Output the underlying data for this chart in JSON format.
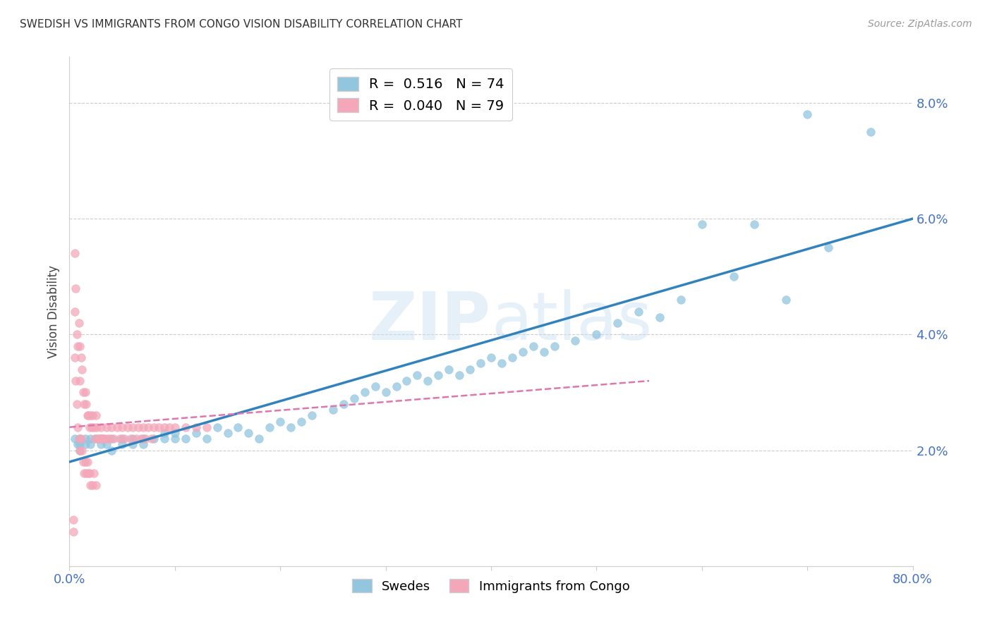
{
  "title": "SWEDISH VS IMMIGRANTS FROM CONGO VISION DISABILITY CORRELATION CHART",
  "source": "Source: ZipAtlas.com",
  "ylabel": "Vision Disability",
  "ytick_labels": [
    "2.0%",
    "4.0%",
    "6.0%",
    "8.0%"
  ],
  "ytick_values": [
    0.02,
    0.04,
    0.06,
    0.08
  ],
  "xlim": [
    0.0,
    0.8
  ],
  "ylim": [
    0.0,
    0.088
  ],
  "legend_entry1": "R =  0.516   N = 74",
  "legend_entry2": "R =  0.040   N = 79",
  "legend_label1": "Swedes",
  "legend_label2": "Immigrants from Congo",
  "blue_color": "#92c5de",
  "pink_color": "#f4a7b9",
  "blue_line_color": "#3182bd",
  "pink_line_color": "#de77ae",
  "title_fontsize": 11,
  "swedes_x": [
    0.005,
    0.008,
    0.01,
    0.01,
    0.01,
    0.015,
    0.015,
    0.02,
    0.02,
    0.025,
    0.03,
    0.03,
    0.035,
    0.04,
    0.04,
    0.05,
    0.05,
    0.06,
    0.06,
    0.07,
    0.07,
    0.08,
    0.09,
    0.09,
    0.1,
    0.1,
    0.11,
    0.12,
    0.13,
    0.14,
    0.15,
    0.16,
    0.17,
    0.18,
    0.19,
    0.2,
    0.21,
    0.22,
    0.23,
    0.25,
    0.26,
    0.27,
    0.28,
    0.29,
    0.3,
    0.31,
    0.32,
    0.33,
    0.34,
    0.35,
    0.36,
    0.37,
    0.38,
    0.39,
    0.4,
    0.41,
    0.42,
    0.43,
    0.44,
    0.45,
    0.46,
    0.48,
    0.5,
    0.52,
    0.54,
    0.56,
    0.58,
    0.6,
    0.63,
    0.65,
    0.68,
    0.7,
    0.72,
    0.76
  ],
  "swedes_y": [
    0.022,
    0.021,
    0.022,
    0.02,
    0.021,
    0.022,
    0.021,
    0.022,
    0.021,
    0.022,
    0.021,
    0.022,
    0.021,
    0.022,
    0.02,
    0.022,
    0.021,
    0.022,
    0.021,
    0.022,
    0.021,
    0.022,
    0.022,
    0.023,
    0.022,
    0.023,
    0.022,
    0.023,
    0.022,
    0.024,
    0.023,
    0.024,
    0.023,
    0.022,
    0.024,
    0.025,
    0.024,
    0.025,
    0.026,
    0.027,
    0.028,
    0.029,
    0.03,
    0.031,
    0.03,
    0.031,
    0.032,
    0.033,
    0.032,
    0.033,
    0.034,
    0.033,
    0.034,
    0.035,
    0.036,
    0.035,
    0.036,
    0.037,
    0.038,
    0.037,
    0.038,
    0.039,
    0.04,
    0.042,
    0.044,
    0.043,
    0.046,
    0.059,
    0.05,
    0.059,
    0.046,
    0.078,
    0.055,
    0.075
  ],
  "congo_x": [
    0.004,
    0.004,
    0.005,
    0.005,
    0.005,
    0.006,
    0.006,
    0.007,
    0.007,
    0.008,
    0.008,
    0.009,
    0.009,
    0.01,
    0.01,
    0.01,
    0.011,
    0.011,
    0.012,
    0.012,
    0.013,
    0.013,
    0.014,
    0.014,
    0.015,
    0.015,
    0.016,
    0.016,
    0.017,
    0.017,
    0.018,
    0.018,
    0.019,
    0.019,
    0.02,
    0.02,
    0.021,
    0.022,
    0.022,
    0.023,
    0.023,
    0.024,
    0.025,
    0.025,
    0.026,
    0.027,
    0.028,
    0.029,
    0.03,
    0.031,
    0.032,
    0.033,
    0.035,
    0.036,
    0.038,
    0.04,
    0.042,
    0.045,
    0.048,
    0.05,
    0.052,
    0.055,
    0.058,
    0.06,
    0.063,
    0.065,
    0.068,
    0.07,
    0.072,
    0.075,
    0.078,
    0.08,
    0.085,
    0.09,
    0.095,
    0.1,
    0.11,
    0.12,
    0.13
  ],
  "congo_y": [
    0.008,
    0.006,
    0.054,
    0.044,
    0.036,
    0.048,
    0.032,
    0.04,
    0.028,
    0.038,
    0.024,
    0.042,
    0.022,
    0.038,
    0.032,
    0.02,
    0.036,
    0.022,
    0.034,
    0.02,
    0.03,
    0.018,
    0.028,
    0.016,
    0.03,
    0.018,
    0.028,
    0.016,
    0.026,
    0.018,
    0.026,
    0.016,
    0.024,
    0.016,
    0.026,
    0.014,
    0.024,
    0.026,
    0.014,
    0.024,
    0.016,
    0.022,
    0.026,
    0.014,
    0.024,
    0.022,
    0.022,
    0.022,
    0.024,
    0.022,
    0.022,
    0.022,
    0.024,
    0.022,
    0.022,
    0.024,
    0.022,
    0.024,
    0.022,
    0.024,
    0.022,
    0.024,
    0.022,
    0.024,
    0.022,
    0.024,
    0.022,
    0.024,
    0.022,
    0.024,
    0.022,
    0.024,
    0.024,
    0.024,
    0.024,
    0.024,
    0.024,
    0.024,
    0.024
  ],
  "blue_line_x": [
    0.0,
    0.8
  ],
  "blue_line_y": [
    0.018,
    0.06
  ],
  "pink_line_x": [
    0.0,
    0.55
  ],
  "pink_line_y": [
    0.024,
    0.032
  ]
}
